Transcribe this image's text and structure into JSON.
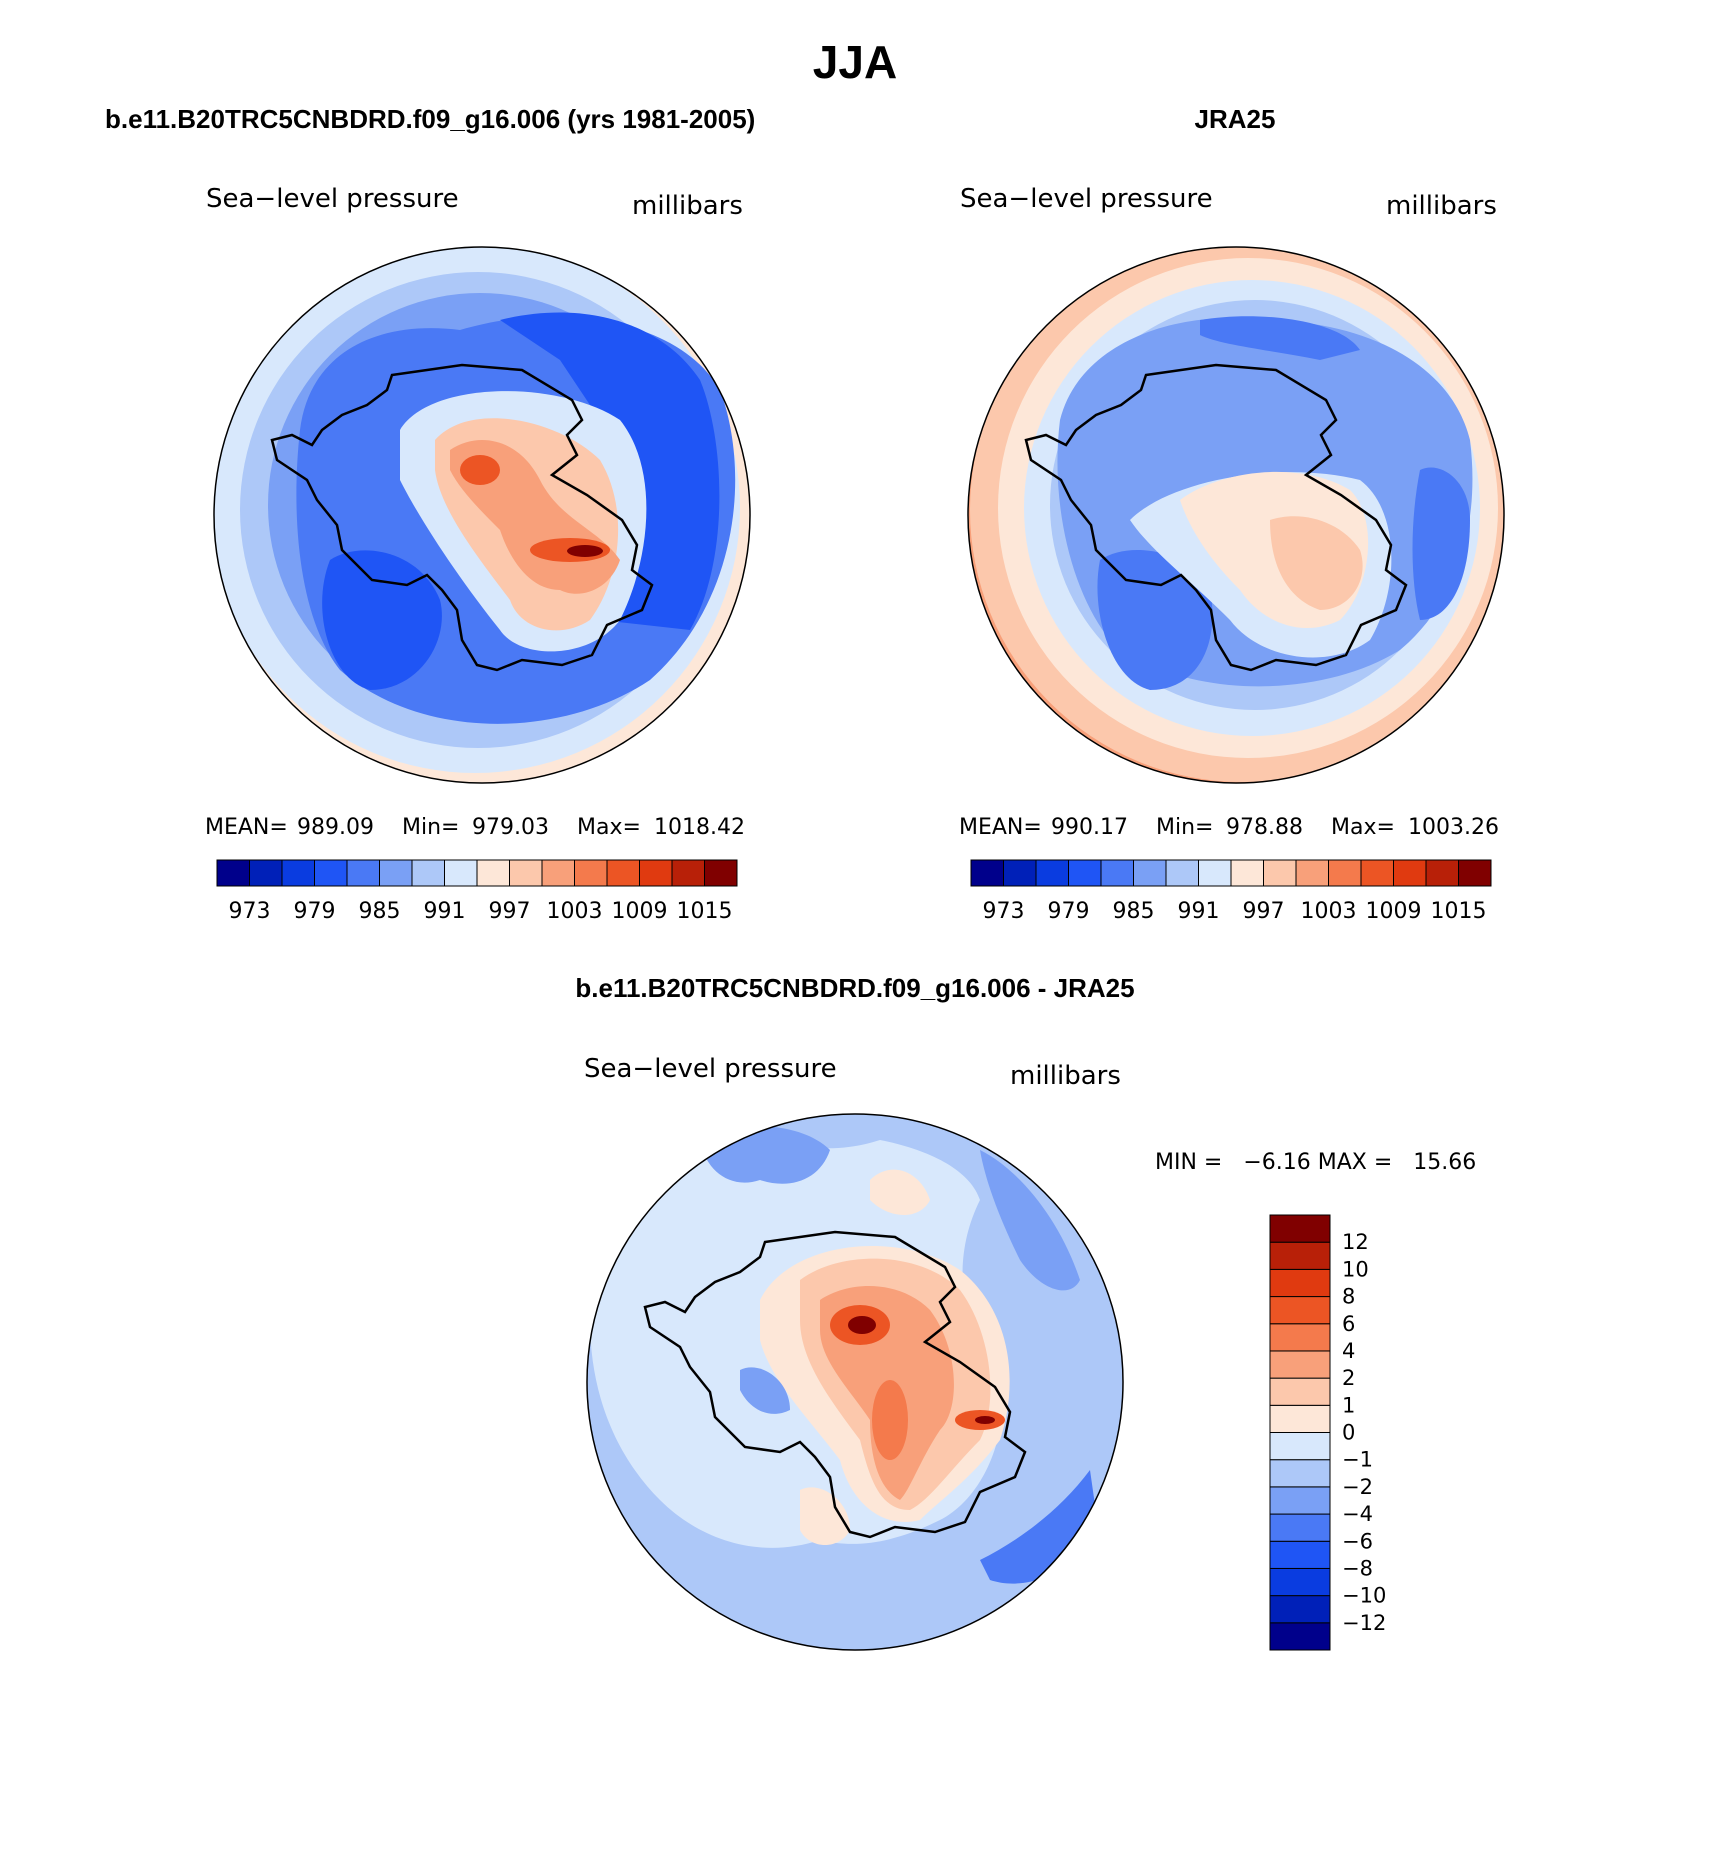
{
  "page_title": "JJA",
  "panels": [
    {
      "title": "b.e11.B20TRC5CNBDRD.f09_g16.006 (yrs 1981-2005)",
      "variable": "Sea−level pressure",
      "units": "millibars",
      "mean_label": "MEAN=",
      "mean": "989.09",
      "min_label": "Min=",
      "min": "979.03",
      "max_label": "Max=",
      "max": "1018.42"
    },
    {
      "title": "JRA25",
      "variable": "Sea−level pressure",
      "units": "millibars",
      "mean_label": "MEAN=",
      "mean": "990.17",
      "min_label": "Min=",
      "min": "978.88",
      "max_label": "Max=",
      "max": "1003.26"
    },
    {
      "title": "b.e11.B20TRC5CNBDRD.f09_g16.006 - JRA25",
      "variable": "Sea−level pressure",
      "units": "millibars",
      "minmax_text": "MIN =   −6.16 MAX =   15.66"
    }
  ],
  "colorbars": {
    "abs": {
      "colors": [
        "#00008b",
        "#0020b8",
        "#0a3ce0",
        "#1f55f5",
        "#4a79f5",
        "#7aa0f5",
        "#adc8f8",
        "#d8e8fc",
        "#fde7d8",
        "#fcc8ac",
        "#f8a07a",
        "#f47a4c",
        "#ec5524",
        "#e03a10",
        "#b82008",
        "#800000"
      ],
      "labels": [
        "973",
        "979",
        "985",
        "991",
        "997",
        "1003",
        "1009",
        "1015"
      ]
    },
    "diff": {
      "colors": [
        "#00008b",
        "#0020b8",
        "#0a3ce0",
        "#1f55f5",
        "#4a79f5",
        "#7aa0f5",
        "#adc8f8",
        "#d8e8fc",
        "#fde7d8",
        "#fcc8ac",
        "#f8a07a",
        "#f47a4c",
        "#ec5524",
        "#e03a10",
        "#b82008",
        "#800000"
      ],
      "labels": [
        "−12",
        "−10",
        "−8",
        "−6",
        "−4",
        "−2",
        "−1",
        "0",
        "1",
        "2",
        "4",
        "6",
        "8",
        "10",
        "12"
      ]
    }
  }
}
